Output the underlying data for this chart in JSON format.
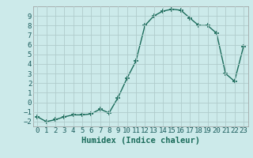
{
  "x": [
    0,
    1,
    2,
    3,
    4,
    5,
    6,
    7,
    8,
    9,
    10,
    11,
    12,
    13,
    14,
    15,
    16,
    17,
    18,
    19,
    20,
    21,
    22,
    23
  ],
  "y": [
    -1.5,
    -2.0,
    -1.8,
    -1.5,
    -1.3,
    -1.3,
    -1.2,
    -0.7,
    -1.1,
    0.5,
    2.5,
    4.3,
    8.0,
    9.0,
    9.5,
    9.7,
    9.6,
    8.8,
    8.0,
    8.0,
    7.2,
    3.0,
    2.2,
    5.8
  ],
  "line_color": "#1a6b5a",
  "marker": "+",
  "marker_size": 4,
  "bg_color": "#cceaea",
  "grid_color": "#b0cccc",
  "xlabel": "Humidex (Indice chaleur)",
  "xlim": [
    -0.5,
    23.5
  ],
  "ylim": [
    -2.5,
    10.0
  ],
  "yticks": [
    -2,
    -1,
    0,
    1,
    2,
    3,
    4,
    5,
    6,
    7,
    8,
    9
  ],
  "xticks": [
    0,
    1,
    2,
    3,
    4,
    5,
    6,
    7,
    8,
    9,
    10,
    11,
    12,
    13,
    14,
    15,
    16,
    17,
    18,
    19,
    20,
    21,
    22,
    23
  ],
  "xlabel_fontsize": 7.5,
  "tick_fontsize": 6.5,
  "linewidth": 1.0,
  "marker_linewidth": 1.2
}
